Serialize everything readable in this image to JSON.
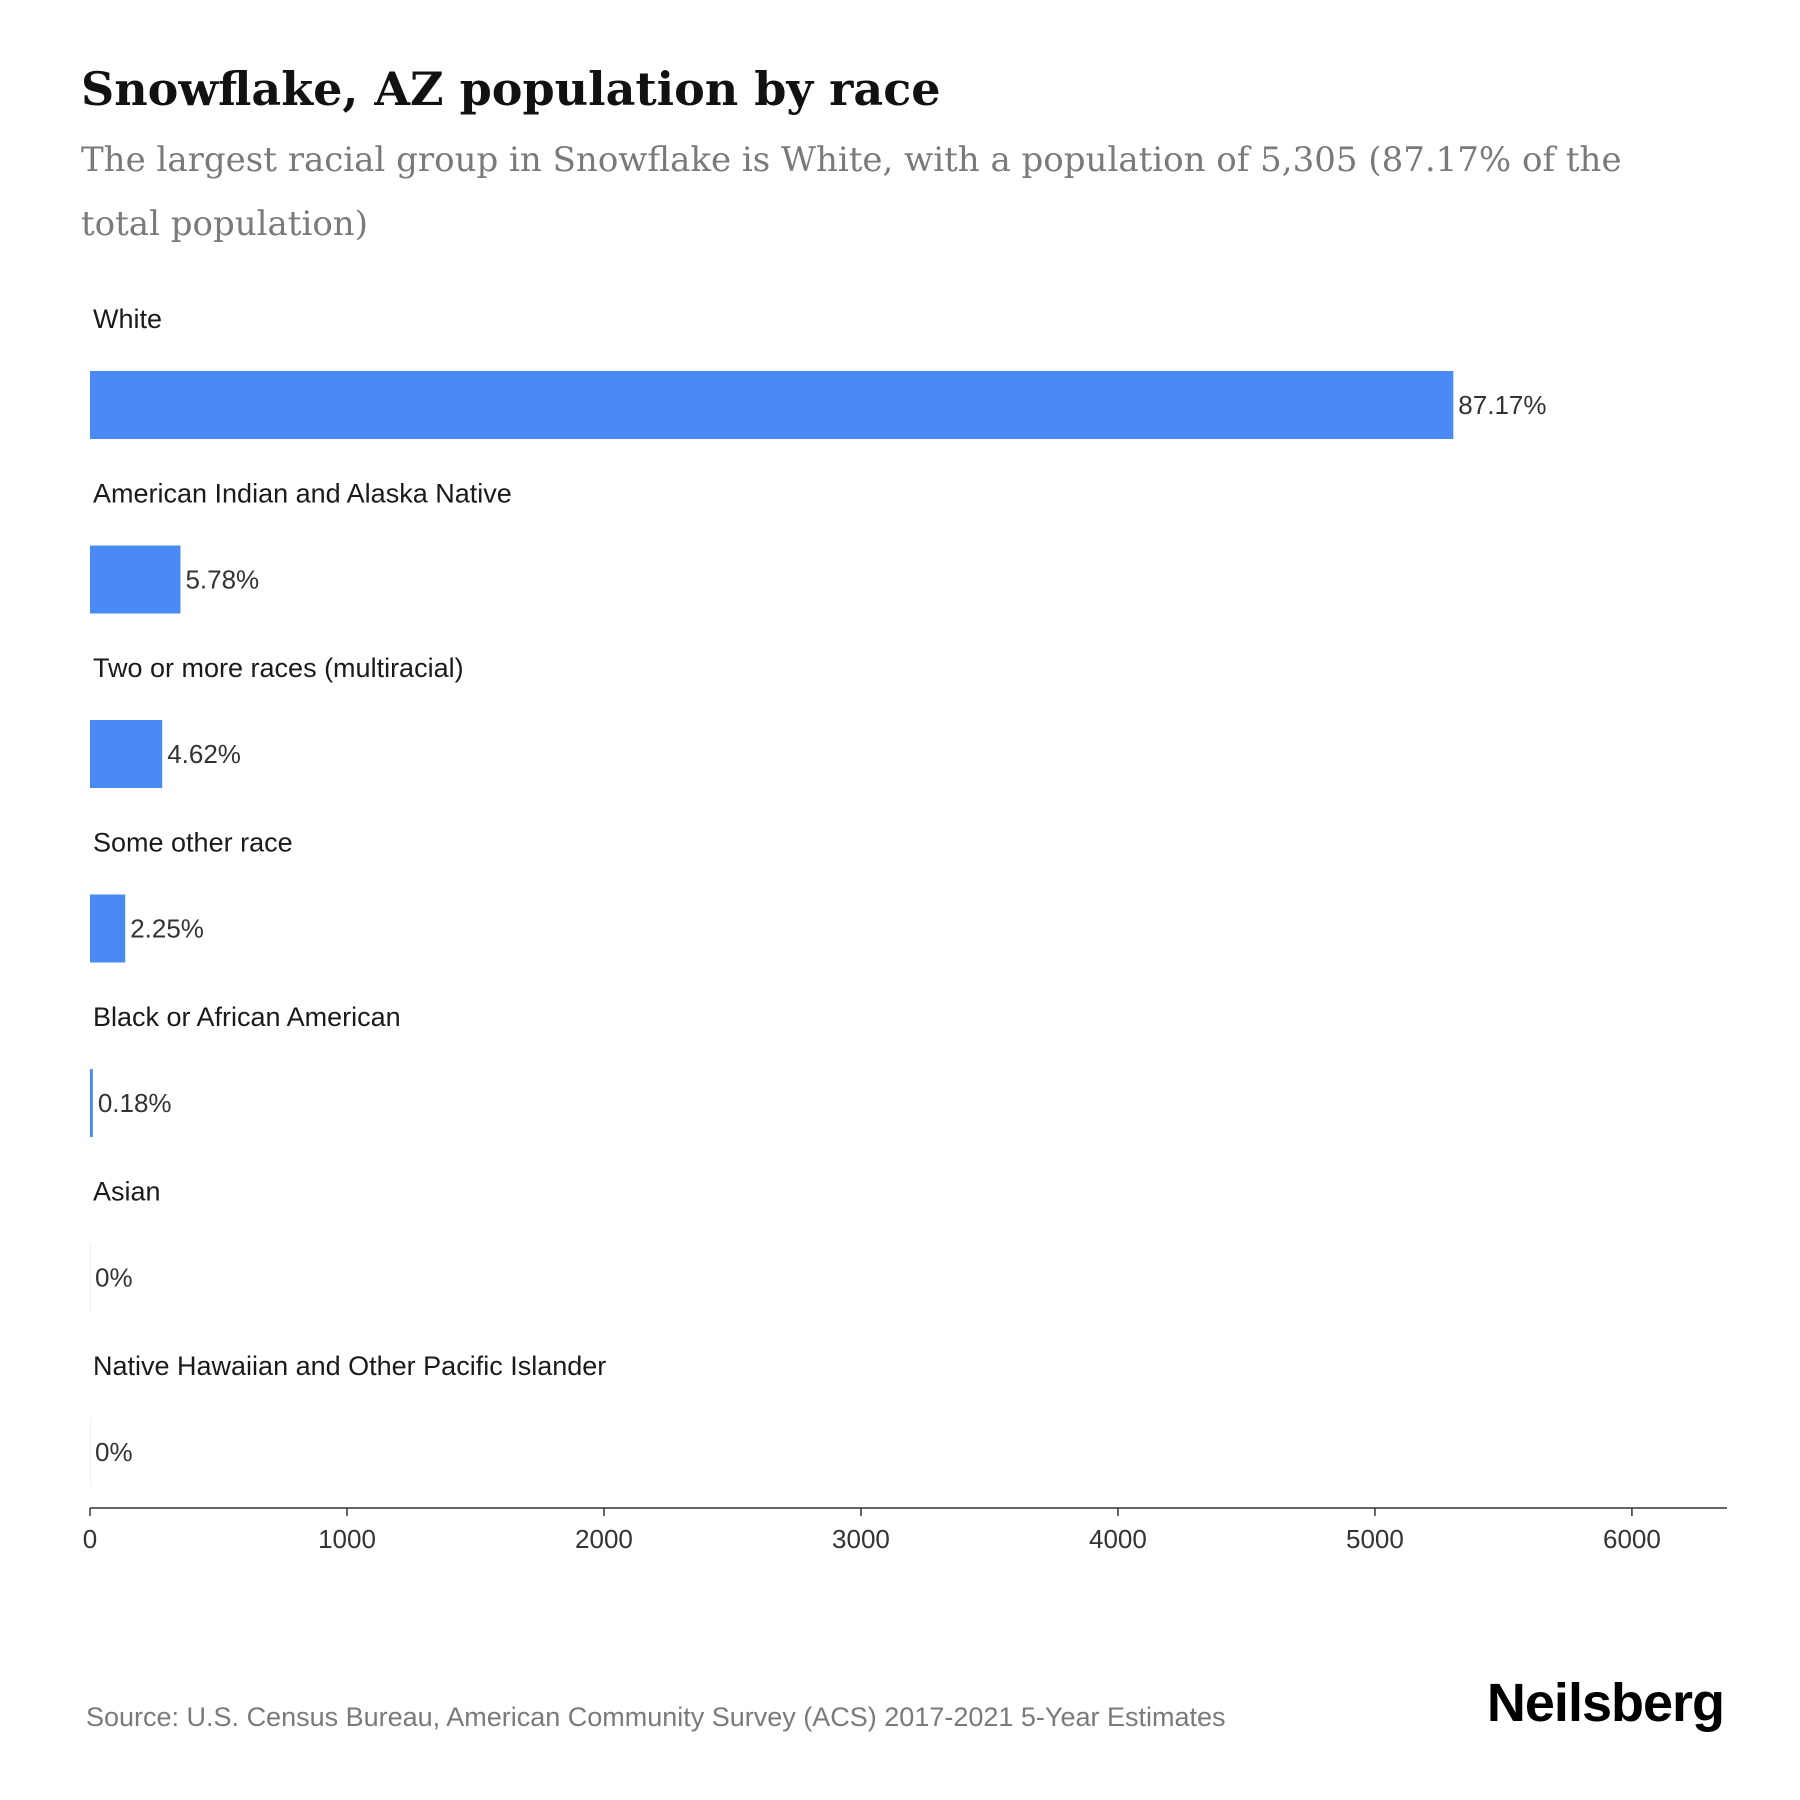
{
  "title": "Snowflake, AZ population by race",
  "subtitle": "The largest racial group in Snowflake is White, with a population of 5,305 (87.17% of the total population)",
  "source": "Source: U.S. Census Bureau, American Community Survey (ACS) 2017-2021 5-Year Estimates",
  "brand": "Neilsberg",
  "colors": {
    "bar": "#4a8af4",
    "axis": "#333333"
  },
  "chart_data": {
    "type": "bar",
    "orientation": "horizontal",
    "title": "Snowflake, AZ population by race",
    "xlabel": "",
    "ylabel": "",
    "xlim": [
      0,
      6370
    ],
    "xticks": [
      0,
      1000,
      2000,
      3000,
      4000,
      5000,
      6000
    ],
    "grid": false,
    "categories": [
      "White",
      "American Indian and Alaska Native",
      "Two or more races (multiracial)",
      "Some other race",
      "Black or African American",
      "Asian",
      "Native Hawaiian and Other Pacific Islander"
    ],
    "values": [
      5305,
      352,
      281,
      137,
      11,
      0,
      0
    ],
    "labels": [
      "87.17%",
      "5.78%",
      "4.62%",
      "2.25%",
      "0.18%",
      "0%",
      "0%"
    ]
  }
}
